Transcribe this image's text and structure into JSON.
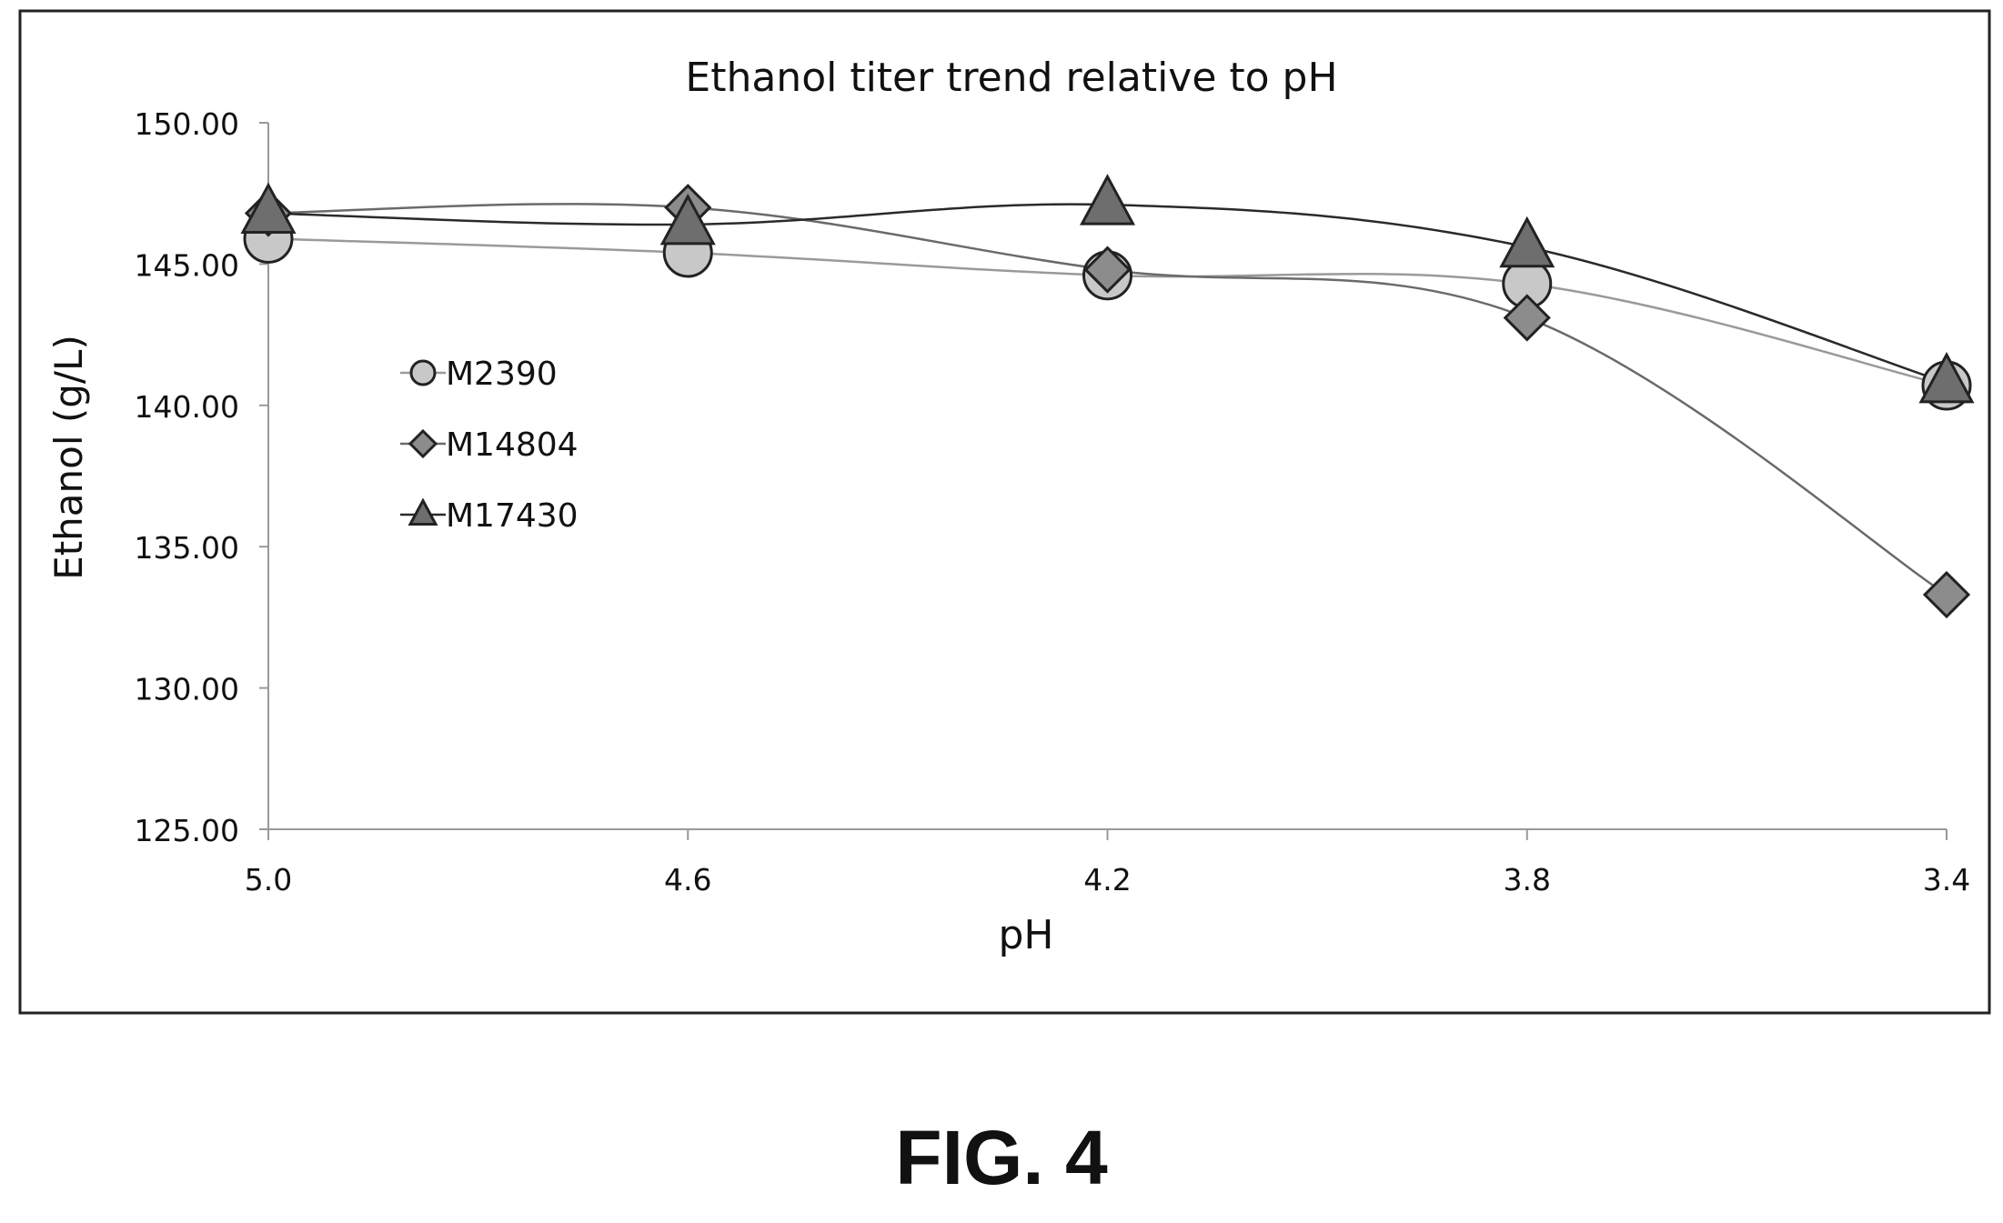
{
  "figure_label": "FIG. 4",
  "chart_data": {
    "type": "line",
    "title": "Ethanol titer trend relative to pH",
    "xlabel": "pH",
    "ylabel": "Ethanol (g/L)",
    "categories": [
      "5.0",
      "4.6",
      "4.2",
      "3.8",
      "3.4"
    ],
    "ylim": [
      125,
      150
    ],
    "yticks": [
      "125.00",
      "130.00",
      "135.00",
      "140.00",
      "145.00",
      "150.00"
    ],
    "grid": false,
    "legend_position": "left-middle",
    "series": [
      {
        "name": "M2390",
        "marker": "circle",
        "color": "#c8c8c8",
        "line_color": "#9a9a9a",
        "values": [
          145.9,
          145.4,
          144.6,
          144.3,
          140.7
        ]
      },
      {
        "name": "M14804",
        "marker": "diamond",
        "color": "#8c8c8c",
        "line_color": "#6a6a6a",
        "values": [
          146.8,
          147.0,
          144.8,
          143.1,
          133.3
        ]
      },
      {
        "name": "M17430",
        "marker": "triangle",
        "color": "#6e6e6e",
        "line_color": "#2a2a2a",
        "values": [
          146.8,
          146.4,
          147.1,
          145.6,
          140.8
        ]
      }
    ]
  }
}
